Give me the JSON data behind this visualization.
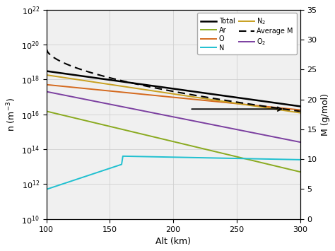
{
  "xlabel": "Alt (km)",
  "ylabel_left": "n (m$^{-3}$)",
  "ylabel_right": "M (g/mol)",
  "xlim": [
    100,
    300
  ],
  "ylim_left": [
    10000000000.0,
    1e+22
  ],
  "ylim_right": [
    0,
    35
  ],
  "colors": {
    "Total": "#000000",
    "O": "#d4691e",
    "N2": "#c8a020",
    "O2": "#7b3fa0",
    "Ar": "#8aaa20",
    "N": "#20c0d0",
    "AverageM": "#000000"
  },
  "grid_color": "#d0d0d0",
  "bg_color": "#f0f0f0"
}
